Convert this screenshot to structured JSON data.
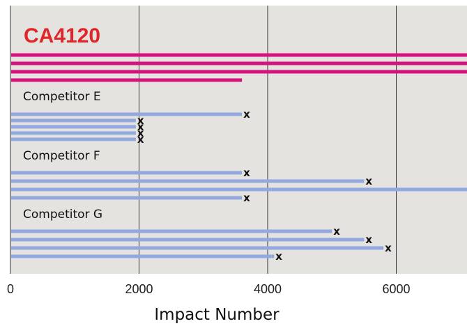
{
  "chart_data": {
    "type": "bar",
    "orientation": "horizontal",
    "xlabel": "Impact Number",
    "xlim": [
      0,
      7100
    ],
    "xticks": [
      0,
      2000,
      4000,
      6000
    ],
    "grid": true,
    "colors": {
      "background": "#e4e3e0",
      "reference_bar": "#d4147c",
      "competitor_bar": "#92a8df",
      "brand_text": "#e0262b"
    },
    "groups": [
      {
        "name": "CA4120",
        "style": "brand",
        "values": [
          7100,
          7100,
          7100,
          3600
        ],
        "markers": [
          false,
          false,
          false,
          false
        ]
      },
      {
        "name": "Competitor E",
        "values": [
          3600,
          1950,
          1950,
          1950,
          1950
        ],
        "markers": [
          true,
          true,
          true,
          true,
          true
        ]
      },
      {
        "name": "Competitor F",
        "values": [
          3600,
          5500,
          7100,
          3600
        ],
        "markers": [
          true,
          true,
          false,
          true
        ]
      },
      {
        "name": "Competitor G",
        "values": [
          5000,
          5500,
          5800,
          4100
        ],
        "markers": [
          true,
          true,
          true,
          true
        ]
      }
    ],
    "marker_symbol": "x"
  }
}
